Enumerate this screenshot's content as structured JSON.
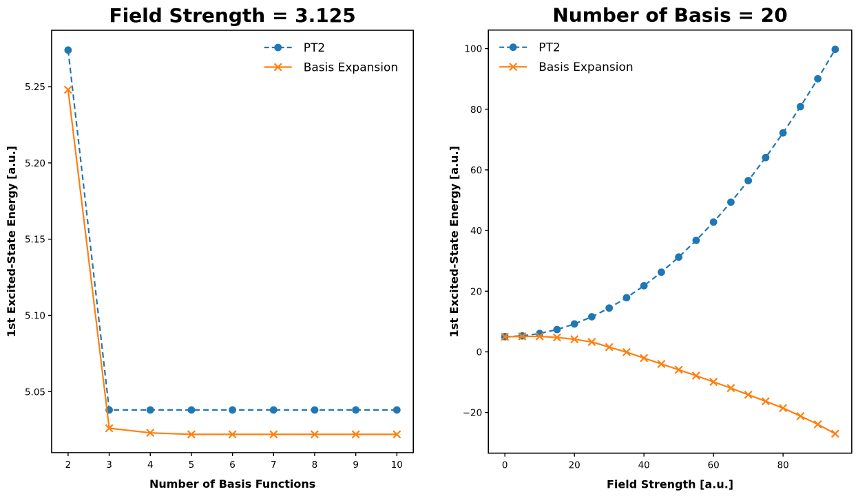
{
  "figure": {
    "background": "#ffffff",
    "series_colors": {
      "pt2": "#1f77b4",
      "basis_expansion": "#ff7f0e"
    }
  },
  "chart_data": [
    {
      "type": "line",
      "title": "Field Strength = 3.125",
      "xlabel": "Number of Basis Functions",
      "ylabel": "1st Excited-State Energy [a.u.]",
      "xlim": [
        1.6,
        10.4
      ],
      "ylim": [
        5.01,
        5.287
      ],
      "grid": false,
      "legend_position": "upper-right",
      "xticks": {
        "values": [
          2,
          3,
          4,
          5,
          6,
          7,
          8,
          9,
          10
        ],
        "labels": [
          "2",
          "3",
          "4",
          "5",
          "6",
          "7",
          "8",
          "9",
          "10"
        ]
      },
      "yticks": {
        "values": [
          5.05,
          5.1,
          5.15,
          5.2,
          5.25
        ],
        "labels": [
          "5.05",
          "5.10",
          "5.15",
          "5.20",
          "5.25"
        ]
      },
      "x": [
        2,
        3,
        4,
        5,
        6,
        7,
        8,
        9,
        10
      ],
      "series": [
        {
          "name": "PT2",
          "color": "#1f77b4",
          "linestyle": "dashed",
          "marker": "circle",
          "values": [
            5.274,
            5.038,
            5.038,
            5.038,
            5.038,
            5.038,
            5.038,
            5.038,
            5.038
          ]
        },
        {
          "name": "Basis Expansion",
          "color": "#ff7f0e",
          "linestyle": "solid",
          "marker": "x",
          "values": [
            5.248,
            5.026,
            5.023,
            5.022,
            5.022,
            5.022,
            5.022,
            5.022,
            5.022
          ]
        }
      ]
    },
    {
      "type": "line",
      "title": "Number of Basis = 20",
      "xlabel": "Field Strength [a.u.]",
      "ylabel": "1st Excited-State Energy [a.u.]",
      "xlim": [
        -4.75,
        99.75
      ],
      "ylim": [
        -33.4,
        106.1
      ],
      "grid": false,
      "legend_position": "upper-left",
      "xticks": {
        "values": [
          0,
          20,
          40,
          60,
          80
        ],
        "labels": [
          "0",
          "20",
          "40",
          "60",
          "80"
        ]
      },
      "yticks": {
        "values": [
          -20,
          0,
          20,
          40,
          60,
          80,
          100
        ],
        "labels": [
          "−20",
          "0",
          "20",
          "40",
          "60",
          "80",
          "100"
        ]
      },
      "x": [
        0,
        5,
        10,
        15,
        20,
        25,
        30,
        35,
        40,
        45,
        50,
        55,
        60,
        65,
        70,
        75,
        80,
        85,
        90,
        95
      ],
      "series": [
        {
          "name": "PT2",
          "color": "#1f77b4",
          "linestyle": "dashed",
          "marker": "circle",
          "values": [
            5.0,
            5.26,
            6.05,
            7.36,
            9.2,
            11.56,
            14.45,
            17.86,
            21.8,
            26.26,
            31.25,
            36.76,
            42.8,
            49.36,
            56.45,
            64.06,
            72.2,
            80.86,
            90.05,
            99.74
          ]
        },
        {
          "name": "Basis Expansion",
          "color": "#ff7f0e",
          "linestyle": "solid",
          "marker": "x",
          "values": [
            4.95,
            5.1,
            5.1,
            4.75,
            4.15,
            3.25,
            1.55,
            -0.1,
            -2.05,
            -4.0,
            -5.9,
            -7.85,
            -9.9,
            -11.95,
            -14.15,
            -16.3,
            -18.55,
            -21.2,
            -23.9,
            -27.0
          ]
        }
      ]
    }
  ]
}
